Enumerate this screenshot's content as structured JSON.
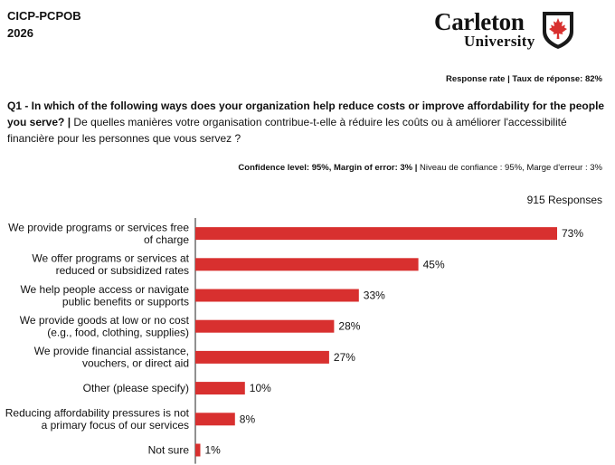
{
  "header": {
    "org_line1": "CICP-PCPOB",
    "org_line2": "2026",
    "logo_name": "Carleton",
    "logo_sub": "University"
  },
  "response_rate": "Response rate | Taux de réponse: 82%",
  "question": {
    "english": "Q1 - In which of the following ways does your organization help reduce costs or improve affordability for the people you serve? |",
    "french": " De quelles manières votre organisation contribue-t-elle à réduire les coûts ou à améliorer l'accessibilité financière pour les personnes que vous servez ?"
  },
  "confidence": {
    "english": "Confidence level: 95%, Margin of error: 3% |",
    "french": " Niveau de confiance : 95%, Marge d'erreur : 3%"
  },
  "responses": "915 Responses",
  "colors": {
    "bar": "#d8302f",
    "axis": "#222222",
    "shield": "#d8302f"
  },
  "chart_data": {
    "type": "bar",
    "orientation": "horizontal",
    "categories": [
      [
        "We provide programs or services free",
        "of charge"
      ],
      [
        "We offer programs or services at",
        "reduced or subsidized rates"
      ],
      [
        "We help people access or navigate",
        "public benefits or supports"
      ],
      [
        "We provide goods at low or no cost",
        "(e.g., food, clothing, supplies)"
      ],
      [
        "We provide financial assistance,",
        "vouchers, or direct aid"
      ],
      [
        "Other (please specify)"
      ],
      [
        "Reducing affordability pressures is not",
        "a primary focus of our services"
      ],
      [
        "Not sure"
      ]
    ],
    "values": [
      73,
      45,
      33,
      28,
      27,
      10,
      8,
      1
    ],
    "value_labels": [
      "73%",
      "45%",
      "33%",
      "28%",
      "27%",
      "10%",
      "8%",
      "1%"
    ],
    "unit": "%",
    "grid": false,
    "legend": "none"
  }
}
